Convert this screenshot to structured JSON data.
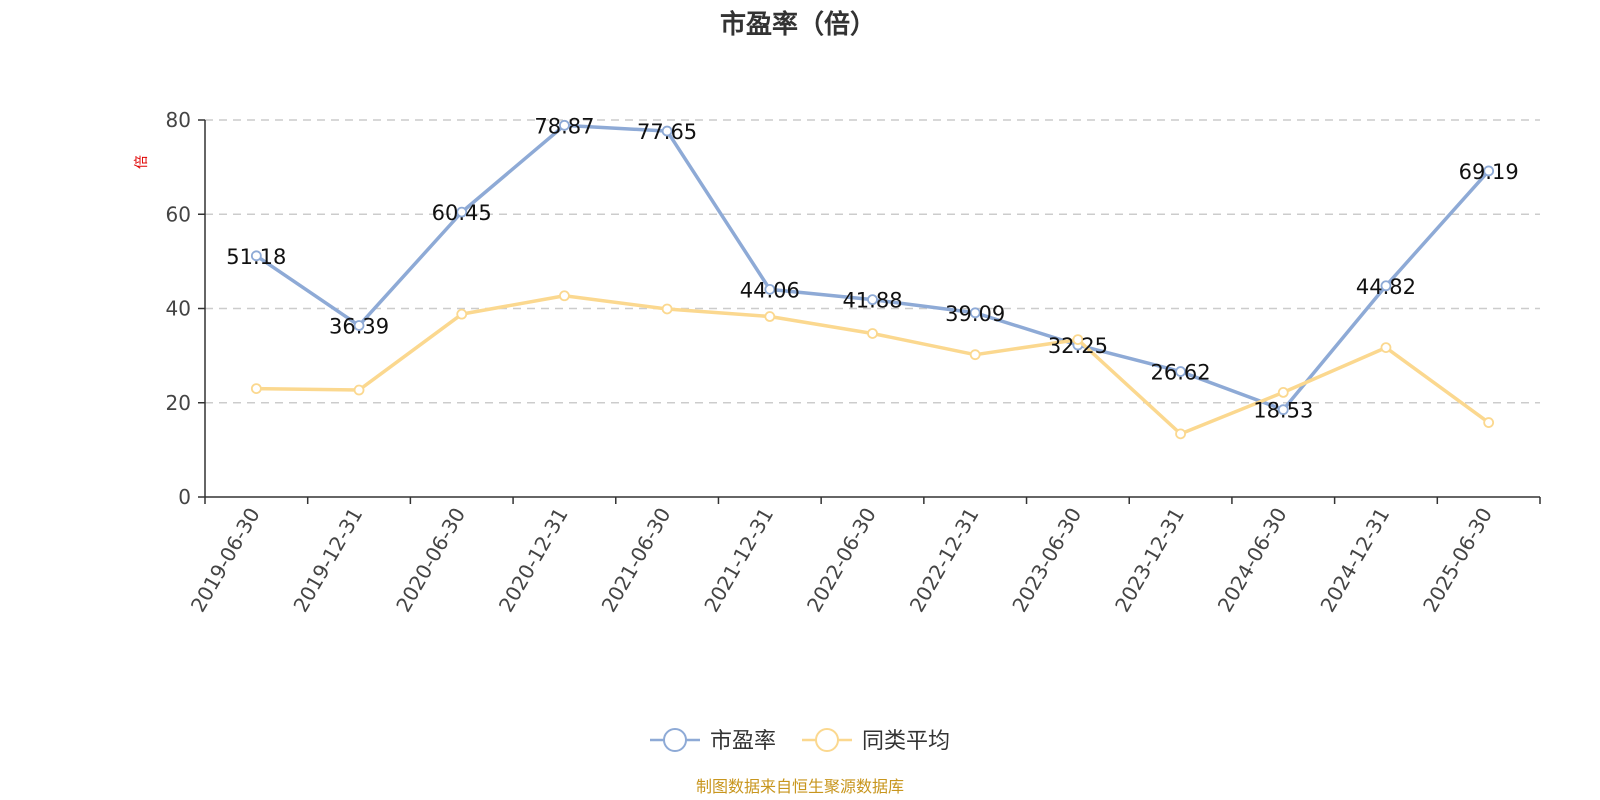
{
  "chart_data": {
    "type": "line",
    "title": "市盈率（倍）",
    "ylabel": "倍",
    "ylim": [
      0,
      80
    ],
    "yticks": [
      0,
      20,
      40,
      60,
      80
    ],
    "grid": true,
    "legend_position": "bottom-center",
    "categories": [
      "2019-06-30",
      "2019-12-31",
      "2020-06-30",
      "2020-12-31",
      "2021-06-30",
      "2021-12-31",
      "2022-06-30",
      "2022-12-31",
      "2023-06-30",
      "2023-12-31",
      "2024-06-30",
      "2024-12-31",
      "2025-06-30"
    ],
    "series": [
      {
        "name": "市盈率",
        "color": "#8eaad6",
        "values": [
          51.18,
          36.39,
          60.45,
          78.87,
          77.65,
          44.06,
          41.88,
          39.09,
          32.25,
          26.62,
          18.53,
          44.82,
          69.19
        ],
        "labels": [
          "51.18",
          "36.39",
          "60.45",
          "78.87",
          "77.65",
          "44.06",
          "41.88",
          "39.09",
          "32.25",
          "26.62",
          "18.53",
          "44.82",
          "69.19"
        ],
        "show_labels": true
      },
      {
        "name": "同类平均",
        "color": "#fbd88f",
        "values": [
          23.0,
          22.7,
          38.8,
          42.7,
          39.9,
          38.3,
          34.7,
          30.2,
          33.4,
          13.4,
          22.2,
          31.7,
          15.8
        ],
        "show_labels": false
      }
    ]
  },
  "footer": {
    "source": "制图数据来自恒生聚源数据库"
  }
}
